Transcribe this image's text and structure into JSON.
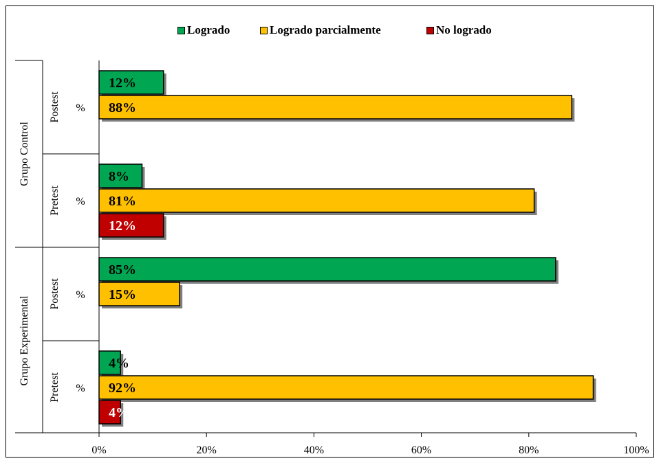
{
  "chart_data": {
    "type": "bar",
    "orientation": "horizontal",
    "legend_position": "top",
    "grid": false,
    "xlim": [
      0,
      100
    ],
    "x_ticks": [
      "0%",
      "20%",
      "40%",
      "60%",
      "80%",
      "100%"
    ],
    "series": [
      {
        "name": "Logrado",
        "color": "#00A651"
      },
      {
        "name": "Logrado parcialmente",
        "color": "#FFC000"
      },
      {
        "name": "No logrado",
        "color": "#C00000"
      }
    ],
    "groups": [
      {
        "label": "Grupo Control",
        "subgroups": [
          {
            "label": "Postest",
            "unit_label": "%",
            "bars": [
              {
                "series": "Logrado",
                "value": 12,
                "label": "12%"
              },
              {
                "series": "Logrado parcialmente",
                "value": 88,
                "label": "88%"
              }
            ]
          },
          {
            "label": "Pretest",
            "unit_label": "%",
            "bars": [
              {
                "series": "Logrado",
                "value": 8,
                "label": "8%"
              },
              {
                "series": "Logrado parcialmente",
                "value": 81,
                "label": "81%"
              },
              {
                "series": "No logrado",
                "value": 12,
                "label": "12%"
              }
            ]
          }
        ]
      },
      {
        "label": "Grupo Experimental",
        "subgroups": [
          {
            "label": "Postest",
            "unit_label": "%",
            "bars": [
              {
                "series": "Logrado",
                "value": 85,
                "label": "85%"
              },
              {
                "series": "Logrado parcialmente",
                "value": 15,
                "label": "15%"
              }
            ]
          },
          {
            "label": "Pretest",
            "unit_label": "%",
            "bars": [
              {
                "series": "Logrado",
                "value": 4,
                "label": "4%"
              },
              {
                "series": "Logrado parcialmente",
                "value": 92,
                "label": "92%"
              },
              {
                "series": "No logrado",
                "value": 4,
                "label": "4%"
              }
            ]
          }
        ]
      }
    ]
  }
}
